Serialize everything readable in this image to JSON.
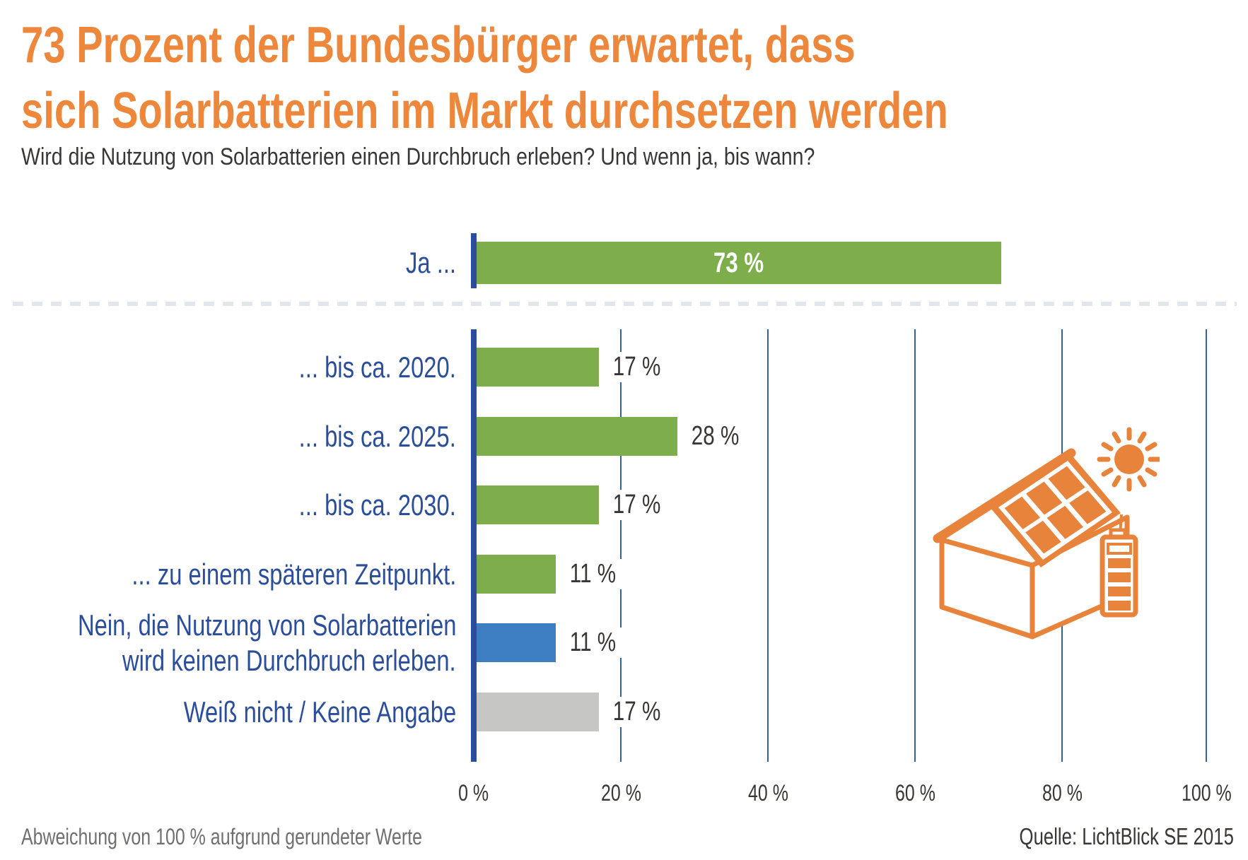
{
  "title": {
    "line1": "73 Prozent der Bundesbürger erwartet, dass",
    "line2": "sich Solarbatterien im Markt durchsetzen werden"
  },
  "subtitle": "Wird die Nutzung von Solarbatterien einen Durchbruch erleben? Und wenn ja, bis wann?",
  "chart_data": {
    "type": "bar",
    "orientation": "horizontal",
    "x_axis": {
      "min": 0,
      "max": 100,
      "unit": "%",
      "ticks": [
        "0 %",
        "20 %",
        "40 %",
        "60 %",
        "80 %",
        "100 %"
      ],
      "tick_values": [
        0,
        20,
        40,
        60,
        80,
        100
      ],
      "gridlines": true
    },
    "summary_row": {
      "label": "Ja ...",
      "value": 73,
      "value_label": "73 %",
      "color": "#7EAE4C",
      "value_label_position": "inside"
    },
    "rows": [
      {
        "label": "... bis ca. 2020.",
        "value": 17,
        "value_label": "17 %",
        "color": "#7EAE4C"
      },
      {
        "label": "... bis ca. 2025.",
        "value": 28,
        "value_label": "28 %",
        "color": "#7EAE4C"
      },
      {
        "label": "... bis ca. 2030.",
        "value": 17,
        "value_label": "17 %",
        "color": "#7EAE4C"
      },
      {
        "label": "... zu einem späteren Zeitpunkt.",
        "value": 11,
        "value_label": "11 %",
        "color": "#7EAE4C"
      },
      {
        "label": "Nein, die Nutzung von Solarbatterien wird keinen Durchbruch erleben.",
        "label_lines": [
          "Nein, die Nutzung von Solarbatterien",
          "wird keinen Durchbruch erleben."
        ],
        "value": 11,
        "value_label": "11 %",
        "color": "#3D7EC2"
      },
      {
        "label": "Weiß nicht / Keine Angabe",
        "value": 17,
        "value_label": "17 %",
        "color": "#C6C6C5"
      }
    ]
  },
  "footer": {
    "note": "Abweichung von 100 % aufgrund gerundeter Werte",
    "source": "Quelle: LichtBlick SE 2015"
  },
  "icon": {
    "name": "solar-house-battery-icon",
    "color": "#E8833C"
  },
  "colors": {
    "title_orange": "#ED873C",
    "label_blue": "#2B4E9B",
    "axis_blue": "#2B4E9B",
    "gridline_blue": "#3560A6",
    "bar_green": "#7EAE4C",
    "bar_blue": "#3D7EC2",
    "bar_gray": "#C6C6C5",
    "text_dark": "#3A3633",
    "note_gray": "#716F6E",
    "bar_value_inside": "#FFFFFF"
  }
}
